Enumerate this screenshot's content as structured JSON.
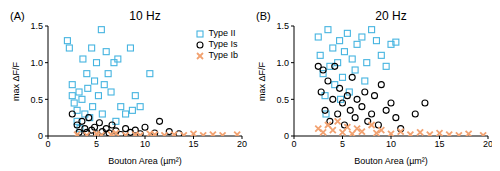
{
  "chart_data": [
    {
      "type": "scatter",
      "title": "10 Hz",
      "annotations": [
        "(A)"
      ],
      "x_label": "Bouton Area (µm²)",
      "y_label": "max ΔF/F",
      "xlim": [
        0,
        20
      ],
      "xticks": [
        0,
        5,
        10,
        15,
        20
      ],
      "ylim": [
        0,
        1.5
      ],
      "yticks": [
        0,
        0.5,
        {
          "value": 1,
          "label": "1.0"
        },
        1.5
      ],
      "legend": "upper right",
      "series": [
        {
          "name": "Type II",
          "color": "#45b4e0",
          "marker": "square",
          "x": [
            2,
            2.2,
            2.5,
            2.5,
            2.7,
            3,
            3,
            3.2,
            3.3,
            3.5,
            3.6,
            3.8,
            4,
            4.1,
            4.3,
            4.5,
            4.6,
            4.8,
            5,
            5.2,
            5.5,
            5.6,
            5.8,
            6,
            6.2,
            6.5,
            6.8,
            7,
            7.2,
            7.5,
            8,
            8.5,
            8.7,
            9,
            9.5,
            10.5
          ],
          "values": [
            1.3,
            1.2,
            0.7,
            0.55,
            0.45,
            0.2,
            0.35,
            0.6,
            0.1,
            0.5,
            1.05,
            0.3,
            0.85,
            0.65,
            0.25,
            1.2,
            0.4,
            0.75,
            1.0,
            0.55,
            1.45,
            0.3,
            0.7,
            1.15,
            0.85,
            0.6,
            1.0,
            0.2,
            1.05,
            0.4,
            0.3,
            1.2,
            0.35,
            0.55,
            0.4,
            0.85
          ]
        },
        {
          "name": "Type Is",
          "color": "#000000",
          "marker": "circle",
          "x": [
            2.5,
            3,
            3.2,
            3.5,
            3.8,
            4,
            4.2,
            4.5,
            4.8,
            5,
            5.3,
            5.6,
            6,
            6.3,
            6.6,
            7,
            7.5,
            8,
            8.5,
            9,
            9.5,
            10,
            11,
            11.5,
            12.5,
            13.5
          ],
          "values": [
            0.3,
            0.15,
            0.05,
            0.2,
            0.1,
            0.05,
            0.25,
            0.08,
            0.12,
            0.03,
            0.18,
            0.06,
            0.1,
            0.04,
            0.15,
            0.07,
            0.02,
            0.1,
            0.05,
            0.08,
            0.03,
            0.12,
            0.04,
            0.2,
            0.06,
            0.03
          ]
        },
        {
          "name": "Type Ib",
          "color": "#f2a271",
          "marker": "x",
          "x": [
            3,
            4,
            5,
            5.5,
            6.5,
            7,
            8,
            9,
            9.5,
            10.5,
            11,
            12,
            13,
            14,
            15,
            16,
            17,
            18,
            19.5
          ],
          "values": [
            0.02,
            0.01,
            0.03,
            0.01,
            0.02,
            0.04,
            0.01,
            0.02,
            0.01,
            0.03,
            0.02,
            0.01,
            0.02,
            0.01,
            0.03,
            0.01,
            0.02,
            0.01,
            0.02
          ]
        }
      ]
    },
    {
      "type": "scatter",
      "title": "20 Hz",
      "annotations": [
        "(B)"
      ],
      "x_label": "Bouton Area (µm²)",
      "y_label": "max ΔF/F",
      "xlim": [
        0,
        20
      ],
      "xticks": [
        0,
        5,
        10,
        15,
        20
      ],
      "ylim": [
        0,
        1.5
      ],
      "yticks": [
        0,
        0.5,
        {
          "value": 1,
          "label": "1.0"
        },
        1.5
      ],
      "series": [
        {
          "name": "Type II",
          "color": "#45b4e0",
          "marker": "square",
          "x": [
            2.5,
            2.7,
            3,
            3.2,
            3.5,
            3.7,
            4,
            4.2,
            4.5,
            4.7,
            5,
            5.2,
            5.5,
            5.7,
            6,
            6.3,
            6.5,
            7,
            7.3,
            7.5,
            8,
            8.5,
            9,
            9.5,
            10,
            10.5,
            3.3,
            4.8
          ],
          "values": [
            1.35,
            1.1,
            0.85,
            0.55,
            1.45,
            0.95,
            1.2,
            0.7,
            1.0,
            1.3,
            0.8,
            1.15,
            1.4,
            0.6,
            1.05,
            0.9,
            1.25,
            1.35,
            0.75,
            1.0,
            1.45,
            1.3,
            1.1,
            0.95,
            1.25,
            1.28,
            0.3,
            0.5
          ]
        },
        {
          "name": "Type Is",
          "color": "#000000",
          "marker": "circle",
          "x": [
            2.5,
            2.8,
            3,
            3.2,
            3.5,
            3.7,
            4,
            4.2,
            4.5,
            4.7,
            5,
            5.2,
            5.5,
            5.8,
            6,
            6.3,
            6.5,
            7,
            7.3,
            7.6,
            8,
            8.3,
            8.7,
            9,
            9.5,
            10,
            10.5,
            11,
            12.5,
            13.5
          ],
          "values": [
            0.95,
            0.6,
            0.9,
            0.35,
            0.75,
            0.2,
            0.5,
            0.95,
            0.3,
            0.65,
            0.45,
            0.15,
            0.55,
            0.35,
            0.8,
            0.25,
            0.5,
            0.4,
            0.6,
            0.2,
            0.3,
            0.55,
            0.15,
            0.7,
            0.35,
            0.45,
            0.25,
            0.1,
            0.3,
            0.45
          ]
        },
        {
          "name": "Type Ib",
          "color": "#f2a271",
          "marker": "x",
          "x": [
            2.5,
            3,
            3.5,
            4,
            4.5,
            5,
            5.5,
            6,
            6.5,
            7,
            8,
            8.5,
            9,
            10,
            11,
            12,
            13,
            14,
            15,
            16,
            17,
            18,
            19.5
          ],
          "values": [
            0.1,
            0.05,
            0.15,
            0.08,
            0.2,
            0.05,
            0.12,
            0.03,
            0.1,
            0.06,
            0.15,
            0.04,
            0.08,
            0.03,
            0.06,
            0.02,
            0.05,
            0.02,
            0.04,
            0.02,
            0.01,
            0.03,
            0.01
          ]
        }
      ]
    }
  ]
}
